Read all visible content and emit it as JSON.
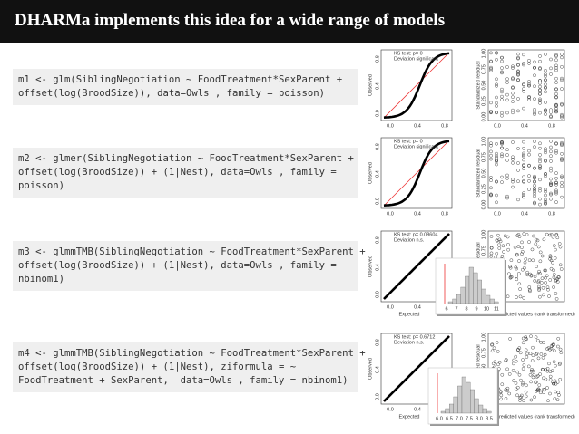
{
  "header": {
    "title": "DHARMa implements this idea for a wide range of models"
  },
  "models": [
    {
      "code": [
        "m1 <- glm(SiblingNegotiation ~ FoodTreatment*SexParent +",
        "offset(log(BroodSize)), data=Owls , family = poisson)"
      ],
      "qq": {
        "y_label": "Observed",
        "ks_test": "KS test: p= 0",
        "deviation": "Deviation significant",
        "x_ticks": [
          "0.0",
          "0.4",
          "0.8"
        ],
        "y_ticks": [
          "0.0",
          "0.4",
          "0.8"
        ]
      },
      "residuals": {
        "y_label": "Standardized residual",
        "y_ticks": [
          "0.00",
          "0.25",
          "0.50",
          "0.75",
          "1.00"
        ],
        "x_ticks": [
          "0.0",
          "0.4",
          "0.8"
        ]
      }
    },
    {
      "code": [
        "m2 <- glmer(SiblingNegotiation ~ FoodTreatment*SexParent +",
        "offset(log(BroodSize)) + (1|Nest), data=Owls , family =",
        "poisson)"
      ],
      "qq": {
        "y_label": "Observed",
        "ks_test": "KS test: p= 0",
        "deviation": "Deviation significant",
        "x_ticks": [
          "0.0",
          "0.4",
          "0.8"
        ],
        "y_ticks": [
          "0.0",
          "0.4",
          "0.8"
        ]
      },
      "residuals": {
        "y_label": "Standardized residual",
        "y_ticks": [
          "0.00",
          "0.25",
          "0.50",
          "0.75",
          "1.00"
        ],
        "x_ticks": [
          "0.0",
          "0.4",
          "0.8"
        ]
      }
    },
    {
      "code": [
        "m3 <- glmmTMB(SiblingNegotiation ~ FoodTreatment*SexParent +",
        "offset(log(BroodSize)) + (1|Nest), data=Owls , family =",
        "nbinom1)"
      ],
      "qq": {
        "y_label": "Observed",
        "x_label": "Expected",
        "ks_test": "KS test: p= 0.08604",
        "deviation": "Deviation n.s.",
        "x_ticks": [
          "0.0",
          "0.4",
          "0.8"
        ],
        "y_ticks": [
          "0.0",
          "0.4",
          "0.8"
        ]
      },
      "residuals": {
        "y_label": "Standardized residual",
        "x_label": "Predicted values (rank transformed)",
        "y_ticks": [
          "0.00",
          "0.25",
          "0.50",
          "0.75",
          "1.00"
        ],
        "x_ticks": []
      },
      "histogram": {
        "x_ticks": [
          "6",
          "7",
          "8",
          "9",
          "10",
          "11"
        ]
      }
    },
    {
      "code": [
        "m4 <- glmmTMB(SiblingNegotiation ~ FoodTreatment*SexParent +",
        "offset(log(BroodSize)) + (1|Nest), ziformula = ~",
        "FoodTreatment + SexParent,  data=Owls , family = nbinom1)"
      ],
      "qq": {
        "y_label": "Observed",
        "x_label": "Expected",
        "ks_test": "KS test: p= 0.6712",
        "deviation": "Deviation n.s.",
        "x_ticks": [
          "0.0",
          "0.4",
          "0.8"
        ],
        "y_ticks": [
          "0.0",
          "0.4",
          "0.8"
        ]
      },
      "residuals": {
        "y_label": "Standardized residual",
        "x_label": "Predicted values (rank transformed)",
        "y_ticks": [
          "0.00",
          "0.25",
          "0.50",
          "0.75",
          "1.00"
        ],
        "x_ticks": []
      },
      "histogram": {
        "x_ticks": [
          "6.0",
          "6.5",
          "7.0",
          "7.5",
          "8.0",
          "8.5"
        ]
      }
    }
  ]
}
